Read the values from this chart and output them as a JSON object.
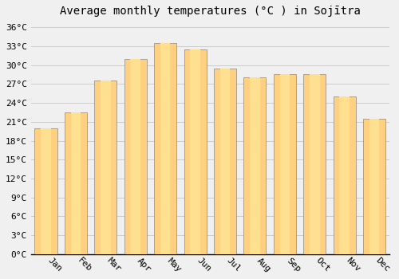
{
  "title": "Average monthly temperatures (°C ) in Sojītra",
  "months": [
    "Jan",
    "Feb",
    "Mar",
    "Apr",
    "May",
    "Jun",
    "Jul",
    "Aug",
    "Sep",
    "Oct",
    "Nov",
    "Dec"
  ],
  "values": [
    20,
    22.5,
    27.5,
    31,
    33.5,
    32.5,
    29.5,
    28,
    28.5,
    28.5,
    25,
    21.5
  ],
  "bar_color_main": "#FFA500",
  "bar_color_light": "#FFD080",
  "background_color": "#F0F0F0",
  "ytick_labels": [
    "0°C",
    "3°C",
    "6°C",
    "9°C",
    "12°C",
    "15°C",
    "18°C",
    "21°C",
    "24°C",
    "27°C",
    "30°C",
    "33°C",
    "36°C"
  ],
  "ytick_values": [
    0,
    3,
    6,
    9,
    12,
    15,
    18,
    21,
    24,
    27,
    30,
    33,
    36
  ],
  "ylim": [
    0,
    37
  ],
  "grid_color": "#CCCCCC",
  "title_fontsize": 10,
  "tick_fontsize": 8,
  "figsize": [
    5.0,
    3.5
  ],
  "dpi": 100
}
